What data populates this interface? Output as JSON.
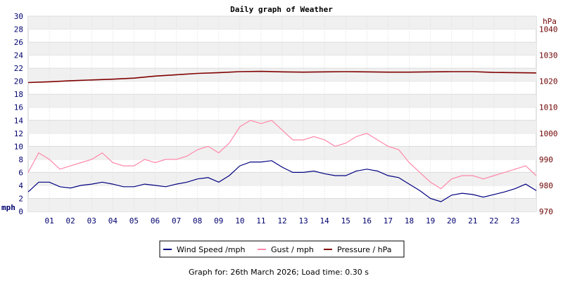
{
  "page": {
    "title": "Daily graph of Weather",
    "footer": "Graph for: 26th March 2026; Load time: 0.30 s"
  },
  "chart_data": {
    "type": "line",
    "title": "Daily graph of Weather",
    "ylabel": "mph",
    "y2label": "hPa",
    "ylim": [
      0,
      30
    ],
    "y2lim": [
      970,
      1045
    ],
    "yticks": [
      0,
      2,
      4,
      6,
      8,
      10,
      12,
      14,
      16,
      18,
      20,
      22,
      24,
      26,
      28,
      30
    ],
    "y2ticks": [
      970,
      980,
      990,
      1000,
      1010,
      1020,
      1030,
      1040
    ],
    "xlim": [
      0,
      24
    ],
    "xticks": [
      "01",
      "02",
      "03",
      "04",
      "05",
      "06",
      "07",
      "08",
      "09",
      "10",
      "11",
      "12",
      "13",
      "14",
      "15",
      "16",
      "17",
      "18",
      "19",
      "20",
      "21",
      "22",
      "23"
    ],
    "grid": "horizontal alternating bands",
    "legend_position": "bottom",
    "series": [
      {
        "name": "Wind Speed /mph",
        "color": "#000080",
        "axis": "left",
        "x": [
          0,
          0.5,
          1,
          1.5,
          2,
          2.5,
          3,
          3.5,
          4,
          4.5,
          5,
          5.5,
          6,
          6.5,
          7,
          7.5,
          8,
          8.5,
          9,
          9.5,
          10,
          10.5,
          11,
          11.5,
          12,
          12.5,
          13,
          13.5,
          14,
          14.5,
          15,
          15.5,
          16,
          16.5,
          17,
          17.5,
          18,
          18.5,
          19,
          19.5,
          20,
          20.5,
          21,
          21.5,
          22,
          22.5,
          23,
          23.5,
          24
        ],
        "values": [
          3,
          4.5,
          4.5,
          3.8,
          3.6,
          4,
          4.2,
          4.5,
          4.2,
          3.8,
          3.8,
          4.2,
          4,
          3.8,
          4.2,
          4.5,
          5,
          5.2,
          4.5,
          5.5,
          7,
          7.6,
          7.6,
          7.8,
          6.8,
          6,
          6,
          6.2,
          5.8,
          5.5,
          5.5,
          6.2,
          6.5,
          6.2,
          5.5,
          5.2,
          4.2,
          3.2,
          2,
          1.5,
          2.5,
          2.8,
          2.6,
          2.2,
          2.6,
          3,
          3.5,
          4.2,
          3.2
        ]
      },
      {
        "name": "Gust / mph",
        "color": "#ff88aa",
        "axis": "left",
        "x": [
          0,
          0.5,
          1,
          1.5,
          2,
          2.5,
          3,
          3.5,
          4,
          4.5,
          5,
          5.5,
          6,
          6.5,
          7,
          7.5,
          8,
          8.5,
          9,
          9.5,
          10,
          10.5,
          11,
          11.5,
          12,
          12.5,
          13,
          13.5,
          14,
          14.5,
          15,
          15.5,
          16,
          16.5,
          17,
          17.5,
          18,
          18.5,
          19,
          19.5,
          20,
          20.5,
          21,
          21.5,
          22,
          22.5,
          23,
          23.5,
          24
        ],
        "values": [
          6,
          9,
          8,
          6.5,
          7,
          7.5,
          8,
          9,
          7.5,
          7,
          7,
          8,
          7.5,
          8,
          8,
          8.5,
          9.5,
          10,
          9,
          10.5,
          13,
          14,
          13.5,
          14,
          12.5,
          11,
          11,
          11.5,
          11,
          10,
          10.5,
          11.5,
          12,
          11,
          10,
          9.5,
          7.5,
          6,
          4.5,
          3.5,
          5,
          5.5,
          5.5,
          5,
          5.5,
          6,
          6.5,
          7,
          5.5
        ]
      },
      {
        "name": "Pressure / hPa",
        "color": "#800000",
        "axis": "right",
        "x": [
          0,
          1,
          2,
          3,
          4,
          5,
          6,
          7,
          8,
          9,
          10,
          11,
          12,
          13,
          14,
          15,
          16,
          17,
          18,
          19,
          20,
          21,
          22,
          23,
          24
        ],
        "values": [
          1019.5,
          1019.8,
          1020.2,
          1020.5,
          1020.8,
          1021.2,
          1022,
          1022.5,
          1023,
          1023.3,
          1023.7,
          1023.8,
          1023.6,
          1023.5,
          1023.6,
          1023.7,
          1023.6,
          1023.5,
          1023.5,
          1023.6,
          1023.7,
          1023.7,
          1023.4,
          1023.3,
          1023.2
        ]
      }
    ]
  }
}
